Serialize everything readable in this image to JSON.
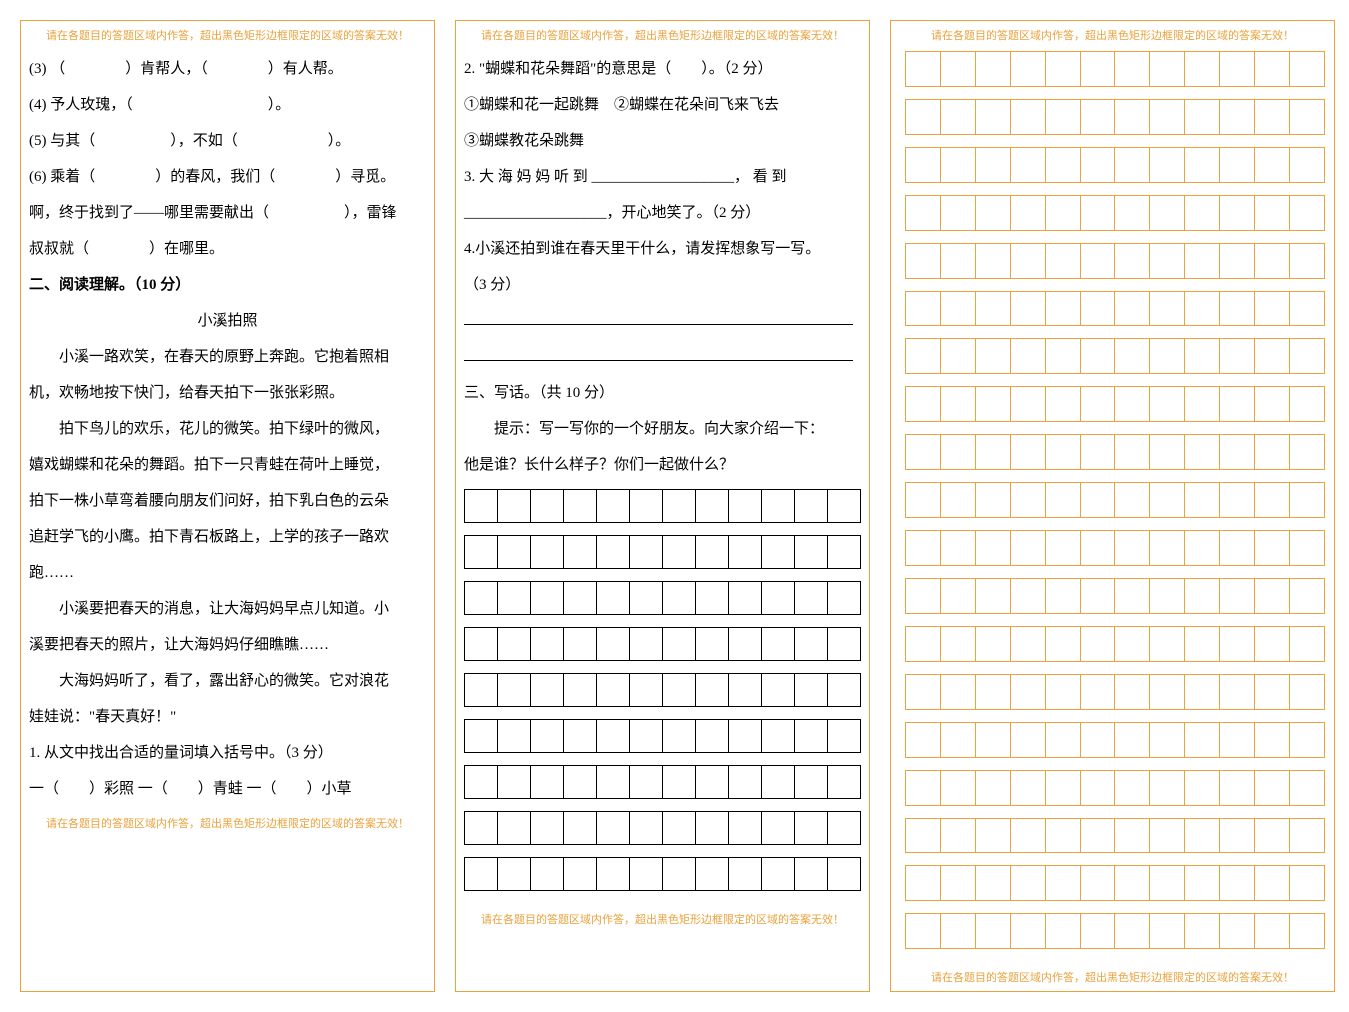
{
  "warning_text": "请在各题目的答题区域内作答，超出黑色矩形边框限定的区域的答案无效！",
  "col1": {
    "q3": "(3)   （　　　　）肯帮人，（　　　　）有人帮。",
    "q4": "(4)  予人玫瑰，（　　　　　　　　　）。",
    "q5": "(5)  与其（　　　　　），不如（　　　　　　）。",
    "q6_1": "(6)  乘着（　　　　）的春风，我们（　　　　）寻觅。",
    "q6_2": "啊，终于找到了——哪里需要献出（　　　　　），雷锋",
    "q6_3": "叔叔就（　　　　）在哪里。",
    "section2": "二、阅读理解。（10 分）",
    "story_title": "小溪拍照",
    "p1": "小溪一路欢笑，在春天的原野上奔跑。它抱着照相",
    "p2": "机，欢畅地按下快门，给春天拍下一张张彩照。",
    "p3": "拍下鸟儿的欢乐，花儿的微笑。拍下绿叶的微风，",
    "p4": "嬉戏蝴蝶和花朵的舞蹈。拍下一只青蛙在荷叶上睡觉，",
    "p5": "拍下一株小草弯着腰向朋友们问好，拍下乳白色的云朵",
    "p6": "追赶学飞的小鹰。拍下青石板路上，上学的孩子一路欢",
    "p7": "跑……",
    "p8": "小溪要把春天的消息，让大海妈妈早点儿知道。小",
    "p9": "溪要把春天的照片，让大海妈妈仔细瞧瞧……",
    "p10": "大海妈妈听了，看了，露出舒心的微笑。它对浪花",
    "p11": "娃娃说：\"春天真好！\"",
    "r1": "1. 从文中找出合适的量词填入括号中。（3 分）",
    "r1a": "一（　　）彩照  一（　　）青蛙  一（　　）小草"
  },
  "col2": {
    "r2": "2. \"蝴蝶和花朵舞蹈\"的意思是（　　）。（2 分）",
    "r2_opts": "①蝴蝶和花一起跳舞　②蝴蝶在花朵间飞来飞去",
    "r2_opt3": "③蝴蝶教花朵跳舞",
    "r3_1": "3. 大 海 妈 妈 听 到 ___________________，   看 到",
    "r3_2": "___________________，开心地笑了。（2 分）",
    "r4": "4.小溪还拍到谁在春天里干什么，请发挥想象写一写。",
    "r4_pts": "（3 分）",
    "section3": "三、写话。（共 10 分）",
    "hint": "提示：写一写你的一个好朋友。向大家介绍一下：",
    "hint2": "他是谁？长什么样子？你们一起做什么？"
  },
  "styling": {
    "border_color": "#e8a33d",
    "text_color": "#000000",
    "warning_color": "#e8a33d",
    "warning_fontsize": 11,
    "body_fontsize": 15,
    "line_height": 2.4,
    "grid_cols": 12,
    "col2_grid_rows": 9,
    "col3_grid_rows_count": 19,
    "col1_width": 415,
    "col2_width": 415,
    "col3_width": 445
  }
}
